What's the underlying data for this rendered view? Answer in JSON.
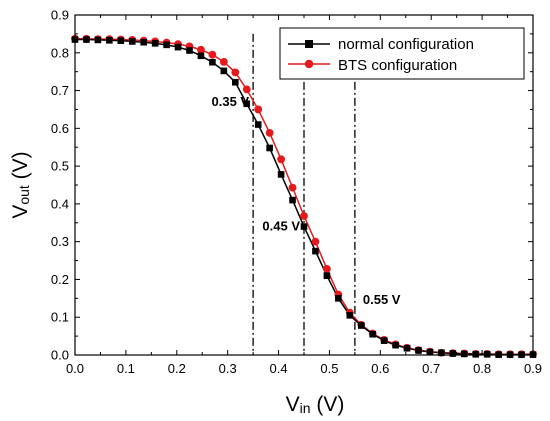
{
  "chart_data": {
    "type": "line",
    "xlabel_main": "V",
    "xlabel_sub": "in",
    "xlabel_unit": " (V)",
    "ylabel_main": "V",
    "ylabel_sub": "out",
    "ylabel_unit": " (V)",
    "xlim": [
      0.0,
      0.9
    ],
    "ylim": [
      0.0,
      0.9
    ],
    "xticks": [
      "0.0",
      "0.1",
      "0.2",
      "0.3",
      "0.4",
      "0.5",
      "0.6",
      "0.7",
      "0.8",
      "0.9"
    ],
    "yticks": [
      "0.0",
      "0.1",
      "0.2",
      "0.3",
      "0.4",
      "0.5",
      "0.6",
      "0.7",
      "0.8",
      "0.9"
    ],
    "grid": false,
    "legend_position": "top-right",
    "colors": {
      "normal": "#000000",
      "bts": "#e41a1c"
    },
    "vlines": [
      0.35,
      0.45,
      0.55
    ],
    "annotations": [
      {
        "text": "0.35 V",
        "x": 0.35,
        "y": 0.67
      },
      {
        "text": "0.45 V",
        "x": 0.45,
        "y": 0.34
      },
      {
        "text": "0.55 V",
        "x": 0.55,
        "y": 0.145
      }
    ],
    "x": [
      0.0,
      0.0225,
      0.045,
      0.0675,
      0.09,
      0.1125,
      0.135,
      0.1575,
      0.18,
      0.2025,
      0.225,
      0.2475,
      0.27,
      0.2925,
      0.315,
      0.3375,
      0.36,
      0.3825,
      0.405,
      0.4275,
      0.45,
      0.4725,
      0.495,
      0.5175,
      0.54,
      0.5625,
      0.585,
      0.6075,
      0.63,
      0.6525,
      0.675,
      0.6975,
      0.72,
      0.7425,
      0.765,
      0.7875,
      0.81,
      0.8325,
      0.855,
      0.8775,
      0.9
    ],
    "series": [
      {
        "name": "normal configuration",
        "values": [
          0.835,
          0.835,
          0.834,
          0.833,
          0.832,
          0.83,
          0.828,
          0.825,
          0.821,
          0.815,
          0.806,
          0.792,
          0.775,
          0.752,
          0.722,
          0.665,
          0.61,
          0.548,
          0.478,
          0.41,
          0.34,
          0.275,
          0.21,
          0.15,
          0.105,
          0.078,
          0.055,
          0.038,
          0.026,
          0.018,
          0.012,
          0.008,
          0.006,
          0.004,
          0.003,
          0.002,
          0.002,
          0.001,
          0.001,
          0.001,
          0.001
        ]
      },
      {
        "name": "BTS configuration",
        "values": [
          0.837,
          0.837,
          0.836,
          0.836,
          0.835,
          0.834,
          0.832,
          0.83,
          0.827,
          0.823,
          0.817,
          0.808,
          0.795,
          0.776,
          0.748,
          0.703,
          0.65,
          0.588,
          0.518,
          0.443,
          0.368,
          0.3,
          0.228,
          0.16,
          0.112,
          0.08,
          0.057,
          0.04,
          0.028,
          0.019,
          0.013,
          0.009,
          0.006,
          0.005,
          0.004,
          0.003,
          0.003,
          0.002,
          0.002,
          0.002,
          0.002
        ]
      }
    ]
  }
}
